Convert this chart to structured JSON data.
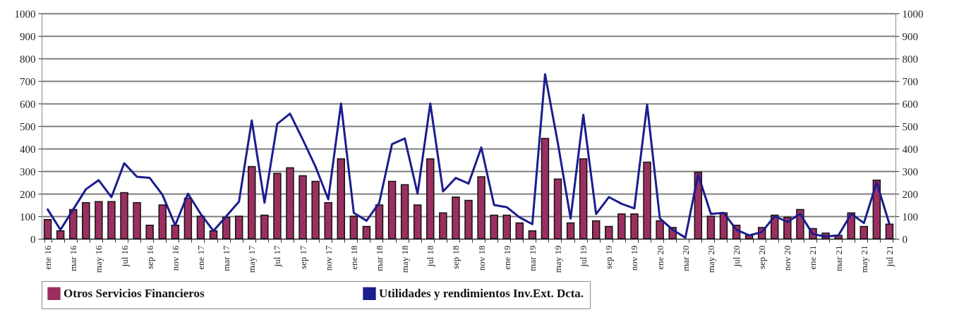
{
  "chart_data": {
    "type": "bar",
    "categories": [
      "ene 16",
      null,
      "mar 16",
      null,
      "may 16",
      null,
      "jul 16",
      null,
      "sep 16",
      null,
      "nov 16",
      null,
      "ene 17",
      null,
      "mar 17",
      null,
      "may 17",
      null,
      "jul 17",
      null,
      "sep 17",
      null,
      "nov 17",
      null,
      "ene 18",
      null,
      "mar 18",
      null,
      "may 18",
      null,
      "jul 18",
      null,
      "sep 18",
      null,
      "nov 18",
      null,
      "ene 19",
      null,
      "mar 19",
      null,
      "may 19",
      null,
      "jul 19",
      null,
      "sep 19",
      null,
      "nov 19",
      null,
      "ene 20",
      null,
      "mar 20",
      null,
      "may 20",
      null,
      "jul 20",
      null,
      "sep 20",
      null,
      "nov 20",
      null,
      "ene 21",
      null,
      "mar 21",
      null,
      "may 21",
      null,
      "jul 21"
    ],
    "series": [
      {
        "name": "Otros Servicios Financieros",
        "color": "#9c2f62",
        "values": [
          85,
          35,
          130,
          160,
          165,
          165,
          205,
          160,
          60,
          150,
          60,
          180,
          100,
          35,
          95,
          100,
          320,
          105,
          290,
          315,
          280,
          255,
          160,
          355,
          100,
          55,
          150,
          255,
          240,
          150,
          355,
          115,
          185,
          170,
          275,
          105,
          105,
          70,
          35,
          445,
          265,
          70,
          355,
          80,
          55,
          110,
          110,
          340,
          80,
          50,
          null,
          295,
          100,
          115,
          60,
          15,
          50,
          105,
          95,
          130,
          45,
          25,
          15,
          115,
          55,
          260,
          65
        ]
      },
      {
        "name": "Utilidades y rendimientos Inv.Ext. Dcta.",
        "type": "line",
        "axis": "y2",
        "color": "#1c1c8f",
        "values": [
          130,
          40,
          130,
          220,
          260,
          185,
          335,
          275,
          270,
          195,
          60,
          200,
          110,
          35,
          100,
          165,
          525,
          160,
          510,
          555,
          440,
          320,
          175,
          600,
          115,
          80,
          160,
          420,
          445,
          200,
          600,
          210,
          270,
          245,
          405,
          150,
          140,
          95,
          65,
          730,
          425,
          90,
          550,
          110,
          185,
          155,
          135,
          595,
          90,
          40,
          5,
          285,
          110,
          115,
          40,
          15,
          30,
          100,
          75,
          110,
          20,
          10,
          15,
          110,
          70,
          250,
          65
        ]
      }
    ],
    "ylim": [
      0,
      1000
    ],
    "yticks": [
      0,
      100,
      200,
      300,
      400,
      500,
      600,
      700,
      800,
      900,
      1000
    ],
    "y2lim": [
      0,
      1000
    ],
    "y2ticks": [
      0,
      100,
      200,
      300,
      400,
      500,
      600,
      700,
      800,
      900,
      1000
    ],
    "grid": "y",
    "legend": "bottom"
  }
}
